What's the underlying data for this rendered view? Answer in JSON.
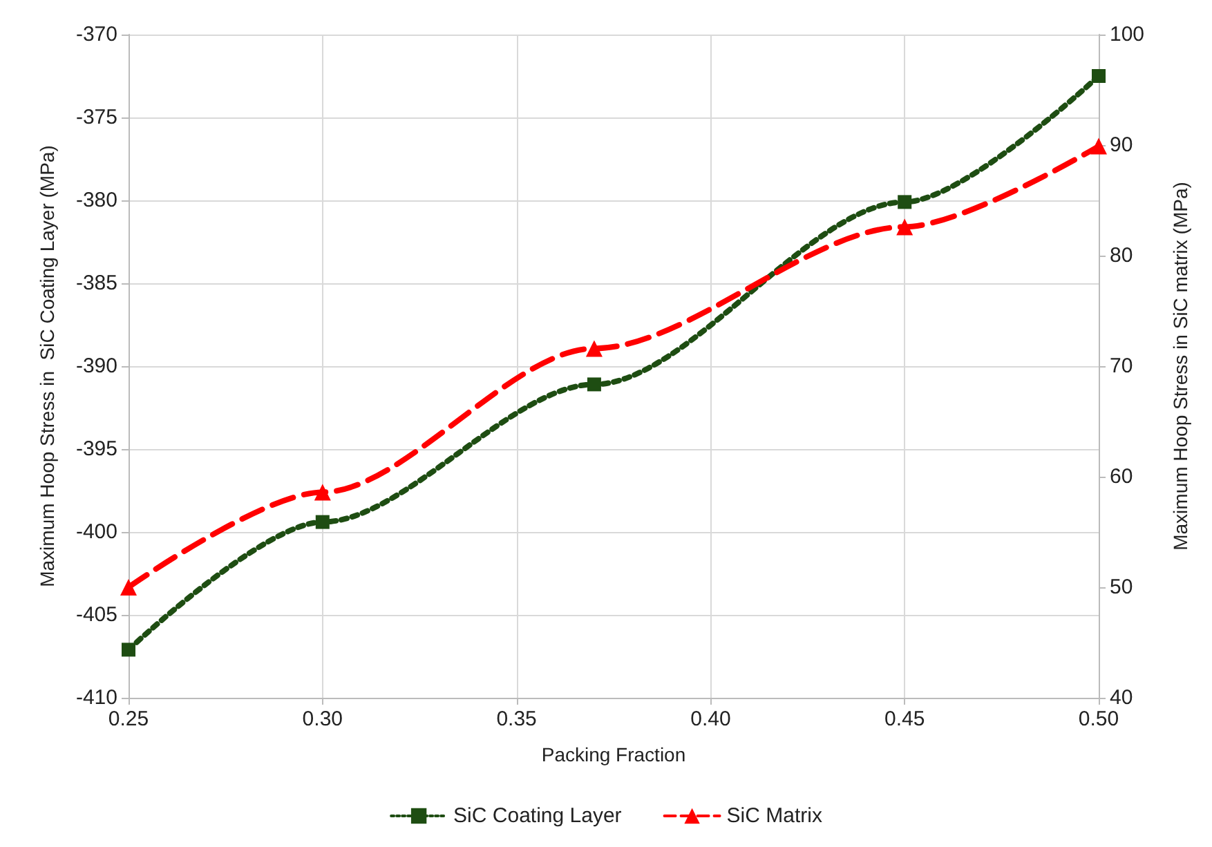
{
  "chart_data": {
    "type": "line",
    "xlabel": "Packing Fraction",
    "ylabel": "Maximum Hoop Stress in  SiC Coating Layer (MPa)",
    "y2label": "Maximum Hoop Stress in SiC matrix (MPa)",
    "x": [
      0.25,
      0.3,
      0.37,
      0.45,
      0.5
    ],
    "xlim": [
      0.25,
      0.5
    ],
    "xticks": [
      0.25,
      {
        "value": 0.3,
        "label": "0.30"
      },
      0.35,
      {
        "value": 0.4,
        "label": "0.40"
      },
      0.45,
      {
        "value": 0.5,
        "label": "0.50"
      }
    ],
    "ylim": [
      -410,
      -370
    ],
    "yticks": [
      -410,
      -405,
      -400,
      -395,
      -390,
      -385,
      -380,
      -375,
      -370
    ],
    "y2lim": [
      40,
      100
    ],
    "y2ticks": [
      40,
      50,
      60,
      70,
      80,
      90,
      100
    ],
    "grid": true,
    "legend": "bottom",
    "series": [
      {
        "name": "SiC Coating Layer",
        "color": "#1e4d12",
        "marker": "square",
        "line_style": "dotted",
        "values": [
          -407.1,
          -399.4,
          -391.1,
          -380.1,
          -372.5
        ]
      },
      {
        "name": "SiC Matrix",
        "color": "#ff0000",
        "marker": "triangle",
        "line_style": "dashed",
        "axis": "y2",
        "values": [
          50.0,
          58.6,
          71.6,
          82.6,
          89.9
        ]
      }
    ]
  }
}
